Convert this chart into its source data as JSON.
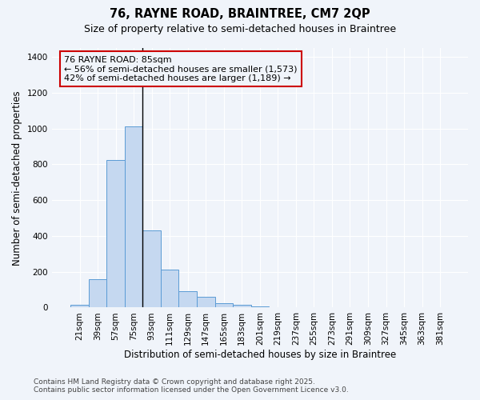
{
  "title_line1": "76, RAYNE ROAD, BRAINTREE, CM7 2QP",
  "title_line2": "Size of property relative to semi-detached houses in Braintree",
  "xlabel": "Distribution of semi-detached houses by size in Braintree",
  "ylabel": "Number of semi-detached properties",
  "categories": [
    "21sqm",
    "39sqm",
    "57sqm",
    "75sqm",
    "93sqm",
    "111sqm",
    "129sqm",
    "147sqm",
    "165sqm",
    "183sqm",
    "201sqm",
    "219sqm",
    "237sqm",
    "255sqm",
    "273sqm",
    "291sqm",
    "309sqm",
    "327sqm",
    "345sqm",
    "363sqm",
    "381sqm"
  ],
  "values": [
    15,
    160,
    825,
    1010,
    430,
    210,
    90,
    62,
    25,
    15,
    5,
    0,
    0,
    0,
    0,
    0,
    0,
    0,
    0,
    0,
    0
  ],
  "bar_color": "#c5d8f0",
  "bar_edge_color": "#5b9bd5",
  "bar_width": 1.0,
  "vline_x": 3.5,
  "vline_color": "#000000",
  "annotation_text_line1": "76 RAYNE ROAD: 85sqm",
  "annotation_text_line2": "← 56% of semi-detached houses are smaller (1,573)",
  "annotation_text_line3": "42% of semi-detached houses are larger (1,189) →",
  "annotation_box_edge_color": "#cc0000",
  "ylim": [
    0,
    1450
  ],
  "yticks": [
    0,
    200,
    400,
    600,
    800,
    1000,
    1200,
    1400
  ],
  "background_color": "#f0f4fa",
  "grid_color": "#ffffff",
  "footer_line1": "Contains HM Land Registry data © Crown copyright and database right 2025.",
  "footer_line2": "Contains public sector information licensed under the Open Government Licence v3.0.",
  "title_fontsize": 10.5,
  "subtitle_fontsize": 9,
  "axis_label_fontsize": 8.5,
  "tick_fontsize": 7.5,
  "annotation_fontsize": 8,
  "footer_fontsize": 6.5
}
